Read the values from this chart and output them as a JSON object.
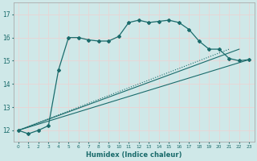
{
  "xlabel": "Humidex (Indice chaleur)",
  "bg_color": "#cfe8e8",
  "grid_color": "#f0d0d0",
  "line_color": "#1a6b6b",
  "xlim": [
    -0.5,
    23.5
  ],
  "ylim": [
    11.5,
    17.5
  ],
  "xticks": [
    0,
    1,
    2,
    3,
    4,
    5,
    6,
    7,
    8,
    9,
    10,
    11,
    12,
    13,
    14,
    15,
    16,
    17,
    18,
    19,
    20,
    21,
    22,
    23
  ],
  "yticks": [
    12,
    13,
    14,
    15,
    16,
    17
  ],
  "line1_x": [
    0,
    1,
    2,
    3,
    4,
    5,
    6,
    7,
    8,
    9,
    10,
    11,
    12,
    13,
    14,
    15,
    16,
    17,
    18,
    19,
    20,
    21,
    22,
    23
  ],
  "line1_y": [
    12.0,
    11.85,
    12.0,
    12.2,
    14.6,
    16.0,
    16.0,
    15.9,
    15.85,
    15.85,
    16.05,
    16.65,
    16.75,
    16.65,
    16.7,
    16.75,
    16.65,
    16.35,
    15.85,
    15.5,
    15.5,
    15.1,
    15.0,
    15.05
  ],
  "line2_x": [
    0,
    23
  ],
  "line2_y": [
    12.0,
    15.05
  ],
  "line3_x": [
    0,
    22
  ],
  "line3_y": [
    12.0,
    15.5
  ],
  "line4_x": [
    0,
    21
  ],
  "line4_y": [
    12.0,
    15.5
  ],
  "marker": "D",
  "markersize": 2.0
}
